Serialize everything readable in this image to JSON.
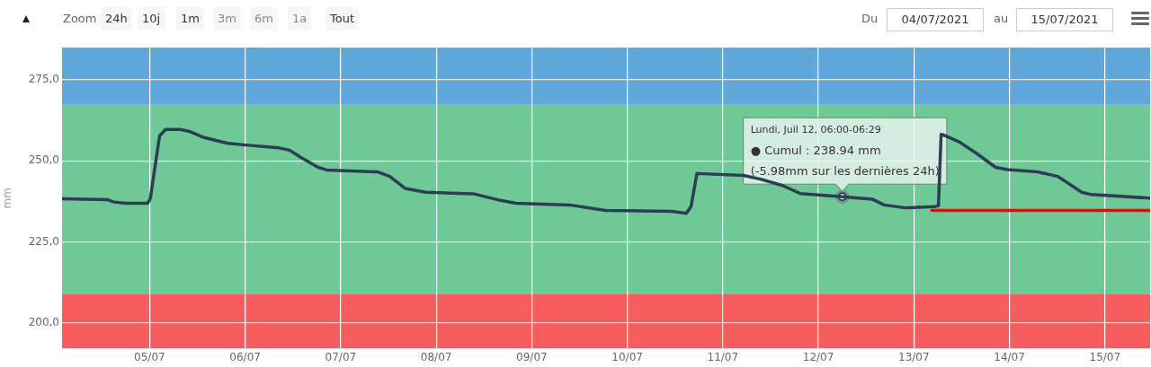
{
  "chart_data": {
    "type": "line",
    "ylabel": "mm",
    "grid": true,
    "legend": false,
    "xlim": [
      "2021-07-04T02:00",
      "2021-07-15T11:20"
    ],
    "xticks": [
      {
        "value": "2021-07-05",
        "label": "05/07"
      },
      {
        "value": "2021-07-06",
        "label": "06/07"
      },
      {
        "value": "2021-07-07",
        "label": "07/07"
      },
      {
        "value": "2021-07-08",
        "label": "08/07"
      },
      {
        "value": "2021-07-09",
        "label": "09/07"
      },
      {
        "value": "2021-07-10",
        "label": "10/07"
      },
      {
        "value": "2021-07-11",
        "label": "11/07"
      },
      {
        "value": "2021-07-12",
        "label": "12/07"
      },
      {
        "value": "2021-07-13",
        "label": "13/07"
      },
      {
        "value": "2021-07-14",
        "label": "14/07"
      },
      {
        "value": "2021-07-15",
        "label": "15/07"
      }
    ],
    "ylim": [
      192,
      285
    ],
    "yticks": [
      {
        "value": 200,
        "label": "200,0"
      },
      {
        "value": 225,
        "label": "225,0"
      },
      {
        "value": 250,
        "label": "250,0"
      },
      {
        "value": 275,
        "label": "275,0"
      }
    ],
    "bands": [
      {
        "axis": "y",
        "from": 192,
        "to": 209,
        "color": "#f65e5e"
      },
      {
        "axis": "y",
        "from": 209,
        "to": 267.3,
        "color": "#6fc997"
      },
      {
        "axis": "y",
        "from": 267.3,
        "to": 285,
        "color": "#60a8da"
      }
    ],
    "series": [
      {
        "color": "#2e3d55",
        "x": [
          "2021-07-04T02:00",
          "2021-07-04T13:30",
          "2021-07-04T15:00",
          "2021-07-04T18:00",
          "2021-07-04T23:30",
          "2021-07-05T00:10",
          "2021-07-05T02:30",
          "2021-07-05T04:00",
          "2021-07-05T07:40",
          "2021-07-05T10:00",
          "2021-07-05T13:40",
          "2021-07-05T19:40",
          "2021-07-06T00:10",
          "2021-07-06T08:30",
          "2021-07-06T11:10",
          "2021-07-06T13:50",
          "2021-07-06T18:20",
          "2021-07-06T20:30",
          "2021-07-07T08:40",
          "2021-07-07T09:20",
          "2021-07-07T12:20",
          "2021-07-07T16:10",
          "2021-07-07T21:20",
          "2021-07-08T09:30",
          "2021-07-08T16:10",
          "2021-07-08T20:00",
          "2021-07-09T09:30",
          "2021-07-09T18:30",
          "2021-07-10T11:10",
          "2021-07-10T14:50",
          "2021-07-10T16:00",
          "2021-07-10T17:30",
          "2021-07-11T05:10",
          "2021-07-11T09:40",
          "2021-07-11T15:00",
          "2021-07-11T19:30",
          "2021-07-12T06:00",
          "2021-07-12T13:30",
          "2021-07-12T16:30",
          "2021-07-12T21:50",
          "2021-07-13T05:20",
          "2021-07-13T06:10",
          "2021-07-13T06:50",
          "2021-07-13T07:40",
          "2021-07-13T11:30",
          "2021-07-13T16:00",
          "2021-07-13T20:30",
          "2021-07-13T23:30",
          "2021-07-14T07:00",
          "2021-07-14T12:10",
          "2021-07-14T18:10",
          "2021-07-14T20:30",
          "2021-07-15T11:20"
        ],
        "values": [
          238.3,
          238.0,
          237.3,
          236.9,
          236.9,
          238.3,
          257.7,
          259.7,
          259.7,
          259.1,
          257.2,
          255.4,
          254.9,
          254.0,
          253.3,
          251.2,
          248.0,
          247.2,
          246.6,
          246.6,
          245.2,
          241.5,
          240.3,
          239.8,
          237.8,
          236.9,
          236.4,
          234.7,
          234.4,
          233.8,
          235.9,
          246.1,
          245.5,
          244.3,
          242.4,
          239.9,
          238.9,
          238.2,
          236.4,
          235.5,
          235.9,
          236.2,
          258.2,
          257.9,
          255.8,
          252.1,
          248.0,
          247.3,
          246.6,
          245.2,
          240.3,
          239.6,
          238.5
        ]
      },
      {
        "color": "#ff0000",
        "x": [
          "2021-07-13T04:30",
          "2021-07-15T11:20"
        ],
        "values": [
          234.7,
          234.7
        ]
      }
    ],
    "annotations": [
      {
        "text": "Lundi, Juil 12, 06:00-06:29\n● Cumul : 238.94 mm\n(-5.98mm sur les dernières 24h)",
        "x": "2021-07-12T06:00",
        "y": 238.94
      },
      "Zoom",
      "24h",
      "10j",
      "1m",
      "3m",
      "6m",
      "1a",
      "Tout",
      "Du",
      "04/07/2021",
      "au",
      "15/07/2021"
    ]
  }
}
